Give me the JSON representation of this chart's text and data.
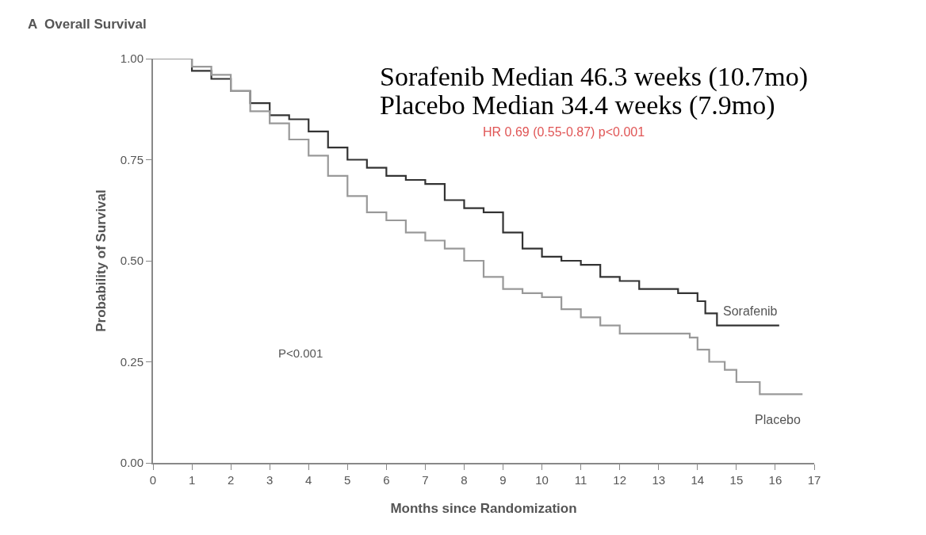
{
  "chart_data": {
    "type": "step",
    "title": "A  Overall Survival",
    "xlabel": "Months since Randomization",
    "ylabel": "Probability of Survival",
    "annotations": [
      "Sorafenib Median 46.3 weeks (10.7mo)",
      "Placebo Median 34.4 weeks (7.9mo)",
      "HR 0.69 (0.55-0.87) p<0.001",
      "P<0.001"
    ],
    "series": [
      {
        "name": "Sorafenib",
        "color": "#333333",
        "x": [
          0,
          0.6,
          1,
          1.5,
          2,
          2.5,
          3,
          3.5,
          4,
          4.5,
          5,
          5.5,
          6,
          6.5,
          7,
          7.5,
          8,
          8.5,
          9,
          9.5,
          10,
          10.5,
          11,
          11.5,
          12,
          12.5,
          13,
          13.5,
          14,
          14.2,
          14.5,
          16.1
        ],
        "values": [
          1,
          1,
          0.97,
          0.95,
          0.92,
          0.89,
          0.86,
          0.85,
          0.82,
          0.78,
          0.75,
          0.73,
          0.71,
          0.7,
          0.69,
          0.65,
          0.63,
          0.62,
          0.57,
          0.53,
          0.51,
          0.5,
          0.49,
          0.46,
          0.45,
          0.43,
          0.43,
          0.42,
          0.4,
          0.37,
          0.34,
          0.34
        ]
      },
      {
        "name": "Placebo",
        "color": "#999999",
        "x": [
          0,
          0.6,
          1,
          1.5,
          2,
          2.5,
          3,
          3.5,
          4,
          4.5,
          5,
          5.5,
          6,
          6.5,
          7,
          7.5,
          8,
          8.5,
          9,
          9.5,
          10,
          10.5,
          11,
          11.5,
          12,
          13,
          13.8,
          14,
          14.3,
          14.7,
          15,
          15.6,
          16.7
        ],
        "values": [
          1,
          1,
          0.98,
          0.96,
          0.92,
          0.87,
          0.84,
          0.8,
          0.76,
          0.71,
          0.66,
          0.62,
          0.6,
          0.57,
          0.55,
          0.53,
          0.5,
          0.46,
          0.43,
          0.42,
          0.41,
          0.38,
          0.36,
          0.34,
          0.32,
          0.32,
          0.31,
          0.28,
          0.25,
          0.23,
          0.2,
          0.17,
          0.17
        ]
      }
    ],
    "xlim": [
      0,
      17
    ],
    "xticks": [
      0,
      1,
      2,
      3,
      4,
      5,
      6,
      7,
      8,
      9,
      10,
      11,
      12,
      13,
      14,
      15,
      16,
      17
    ],
    "ylim": [
      0,
      1
    ],
    "yticks": [
      {
        "value": 0,
        "label": "0.00"
      },
      {
        "value": 0.25,
        "label": "0.25"
      },
      {
        "value": 0.5,
        "label": "0.50"
      },
      {
        "value": 0.75,
        "label": "0.75"
      },
      {
        "value": 1,
        "label": "1.00"
      }
    ],
    "grid": false,
    "legend": false,
    "line_style": "solid",
    "marker": "none"
  }
}
